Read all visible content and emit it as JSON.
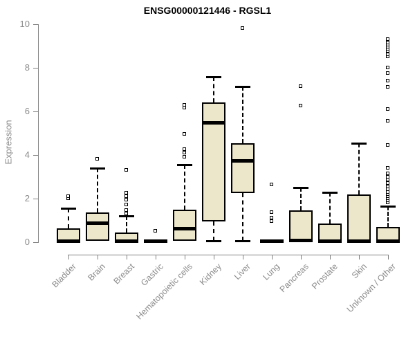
{
  "header": {
    "title": "ENSG00000121446 - RGSL1"
  },
  "colors": {
    "box_fill": "#ECE6CA",
    "box_border": "#000000",
    "axis": "#808080",
    "axis_text": "#8c8c8c",
    "title_text": "#000000",
    "background": "#ffffff"
  },
  "chart_data": {
    "type": "boxplot",
    "title": "ENSG00000121446 - RGSL1",
    "xlabel": "",
    "ylabel": "Expression",
    "ylim": [
      0,
      10
    ],
    "yticks": [
      0,
      2,
      4,
      6,
      8,
      10
    ],
    "grid": false,
    "legend": "none",
    "categories": [
      "Bladder",
      "Brain",
      "Breast",
      "Gastric",
      "Hematopoietic cells",
      "Kidney",
      "Liver",
      "Lung",
      "Pancreas",
      "Prostate",
      "Skin",
      "Unknown / Other"
    ],
    "series": [
      {
        "name": "Bladder",
        "q1": 0,
        "median": 0.05,
        "q3": 0.65,
        "whisker_low": 0,
        "whisker_high": 1.55,
        "outliers": [
          2.0,
          2.1
        ]
      },
      {
        "name": "Brain",
        "q1": 0.05,
        "median": 0.9,
        "q3": 1.35,
        "whisker_low": 0.05,
        "whisker_high": 3.4,
        "outliers": [
          3.8
        ]
      },
      {
        "name": "Breast",
        "q1": 0,
        "median": 0.05,
        "q3": 0.45,
        "whisker_low": 0,
        "whisker_high": 1.2,
        "outliers": [
          1.3,
          1.45,
          1.7,
          1.95,
          2.1,
          2.25,
          3.3
        ]
      },
      {
        "name": "Gastric",
        "q1": 0,
        "median": 0.05,
        "q3": 0.1,
        "whisker_low": 0,
        "whisker_high": 0.1,
        "outliers": [
          0.5
        ]
      },
      {
        "name": "Hematopoietic cells",
        "q1": 0.05,
        "median": 0.65,
        "q3": 1.5,
        "whisker_low": 0.05,
        "whisker_high": 3.55,
        "outliers": [
          3.9,
          4.1,
          4.25,
          4.95,
          6.15,
          6.3
        ]
      },
      {
        "name": "Kidney",
        "q1": 0.95,
        "median": 5.5,
        "q3": 6.4,
        "whisker_low": 0.05,
        "whisker_high": 7.6,
        "outliers": []
      },
      {
        "name": "Liver",
        "q1": 2.25,
        "median": 3.75,
        "q3": 4.55,
        "whisker_low": 0.05,
        "whisker_high": 7.15,
        "outliers": [
          9.8
        ]
      },
      {
        "name": "Lung",
        "q1": 0,
        "median": 0.05,
        "q3": 0.1,
        "whisker_low": 0,
        "whisker_high": 0.1,
        "outliers": [
          0.95,
          1.1,
          1.35,
          2.65
        ]
      },
      {
        "name": "Pancreas",
        "q1": 0.05,
        "median": 0.1,
        "q3": 1.45,
        "whisker_low": 0.05,
        "whisker_high": 2.5,
        "outliers": [
          6.25,
          7.15
        ]
      },
      {
        "name": "Prostate",
        "q1": 0,
        "median": 0.05,
        "q3": 0.85,
        "whisker_low": 0,
        "whisker_high": 2.3,
        "outliers": []
      },
      {
        "name": "Skin",
        "q1": 0,
        "median": 0.05,
        "q3": 2.2,
        "whisker_low": 0,
        "whisker_high": 4.55,
        "outliers": []
      },
      {
        "name": "Unknown / Other",
        "q1": 0,
        "median": 0.05,
        "q3": 0.7,
        "whisker_low": 0,
        "whisker_high": 1.65,
        "outliers": [
          1.8,
          1.9,
          2.0,
          2.1,
          2.2,
          2.3,
          2.4,
          2.55,
          2.7,
          2.85,
          3.0,
          3.15,
          3.4,
          4.45,
          5.55,
          6.1,
          7.1,
          7.4,
          7.75,
          8.0,
          8.5,
          8.6,
          8.75,
          8.85,
          8.95,
          9.05,
          9.15,
          9.3
        ]
      }
    ]
  }
}
